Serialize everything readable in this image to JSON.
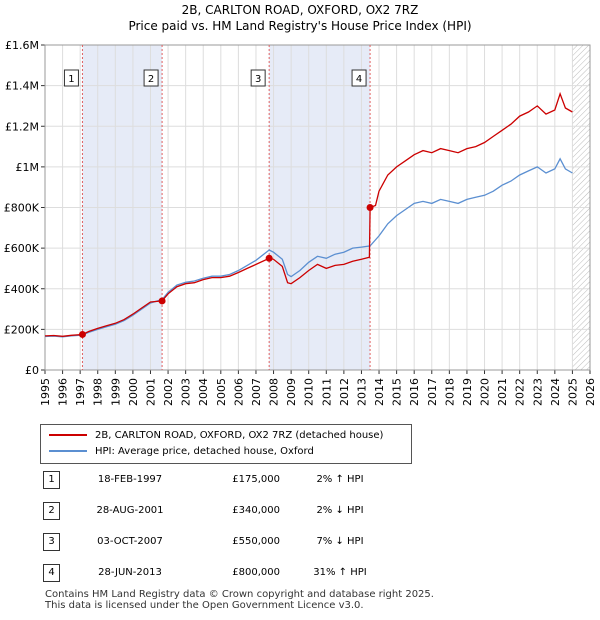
{
  "chart_data": {
    "type": "line",
    "title": "2B, CARLTON ROAD, OXFORD, OX2 7RZ",
    "subtitle": "Price paid vs. HM Land Registry's House Price Index (HPI)",
    "xlabel": "",
    "ylabel": "",
    "xlim": [
      1995,
      2026
    ],
    "ylim": [
      0,
      1600000
    ],
    "x_ticks": [
      "1995",
      "1996",
      "1997",
      "1998",
      "1999",
      "2000",
      "2001",
      "2002",
      "2003",
      "2004",
      "2005",
      "2006",
      "2007",
      "2008",
      "2009",
      "2010",
      "2011",
      "2012",
      "2013",
      "2014",
      "2015",
      "2016",
      "2017",
      "2018",
      "2019",
      "2020",
      "2021",
      "2022",
      "2023",
      "2024",
      "2025",
      "2026"
    ],
    "y_ticks": [
      {
        "value": 0,
        "label": "£0"
      },
      {
        "value": 200000,
        "label": "£200K"
      },
      {
        "value": 400000,
        "label": "£400K"
      },
      {
        "value": 600000,
        "label": "£600K"
      },
      {
        "value": 800000,
        "label": "£800K"
      },
      {
        "value": 1000000,
        "label": "£1M"
      },
      {
        "value": 1200000,
        "label": "£1.2M"
      },
      {
        "value": 1400000,
        "label": "£1.4M"
      },
      {
        "value": 1600000,
        "label": "£1.6M"
      }
    ],
    "grid": true,
    "shaded_spans": [
      [
        1997.13,
        2001.66
      ],
      [
        2007.75,
        2013.49
      ]
    ],
    "forecast_from": 2025.0,
    "series": [
      {
        "name": "2B, CARLTON ROAD, OXFORD, OX2 7RZ (detached house)",
        "color": "#cc0000",
        "points": [
          [
            1995.0,
            168000
          ],
          [
            1995.5,
            170000
          ],
          [
            1996.0,
            166000
          ],
          [
            1996.5,
            171000
          ],
          [
            1997.13,
            175000
          ],
          [
            1997.5,
            190000
          ],
          [
            1998.0,
            205000
          ],
          [
            1998.5,
            218000
          ],
          [
            1999.0,
            230000
          ],
          [
            1999.5,
            248000
          ],
          [
            2000.0,
            275000
          ],
          [
            2000.5,
            305000
          ],
          [
            2001.0,
            335000
          ],
          [
            2001.66,
            340000
          ],
          [
            2002.0,
            375000
          ],
          [
            2002.5,
            410000
          ],
          [
            2003.0,
            425000
          ],
          [
            2003.5,
            430000
          ],
          [
            2004.0,
            445000
          ],
          [
            2004.5,
            455000
          ],
          [
            2005.0,
            455000
          ],
          [
            2005.5,
            462000
          ],
          [
            2006.0,
            480000
          ],
          [
            2006.5,
            500000
          ],
          [
            2007.0,
            520000
          ],
          [
            2007.75,
            550000
          ],
          [
            2008.0,
            545000
          ],
          [
            2008.5,
            510000
          ],
          [
            2008.8,
            430000
          ],
          [
            2009.0,
            425000
          ],
          [
            2009.5,
            455000
          ],
          [
            2010.0,
            490000
          ],
          [
            2010.5,
            520000
          ],
          [
            2011.0,
            500000
          ],
          [
            2011.5,
            515000
          ],
          [
            2012.0,
            520000
          ],
          [
            2012.5,
            535000
          ],
          [
            2013.0,
            545000
          ],
          [
            2013.45,
            555000
          ],
          [
            2013.49,
            800000
          ],
          [
            2013.8,
            810000
          ],
          [
            2014.0,
            880000
          ],
          [
            2014.5,
            960000
          ],
          [
            2015.0,
            1000000
          ],
          [
            2015.5,
            1030000
          ],
          [
            2016.0,
            1060000
          ],
          [
            2016.5,
            1080000
          ],
          [
            2017.0,
            1070000
          ],
          [
            2017.5,
            1090000
          ],
          [
            2018.0,
            1080000
          ],
          [
            2018.5,
            1070000
          ],
          [
            2019.0,
            1090000
          ],
          [
            2019.5,
            1100000
          ],
          [
            2020.0,
            1120000
          ],
          [
            2020.5,
            1150000
          ],
          [
            2021.0,
            1180000
          ],
          [
            2021.5,
            1210000
          ],
          [
            2022.0,
            1250000
          ],
          [
            2022.5,
            1270000
          ],
          [
            2023.0,
            1300000
          ],
          [
            2023.5,
            1260000
          ],
          [
            2024.0,
            1280000
          ],
          [
            2024.3,
            1360000
          ],
          [
            2024.6,
            1290000
          ],
          [
            2025.0,
            1270000
          ]
        ]
      },
      {
        "name": "HPI: Average price, detached house, Oxford",
        "color": "#5b8fd1",
        "points": [
          [
            1995.0,
            165000
          ],
          [
            1995.5,
            167000
          ],
          [
            1996.0,
            163000
          ],
          [
            1996.5,
            168000
          ],
          [
            1997.13,
            172000
          ],
          [
            1997.5,
            186000
          ],
          [
            1998.0,
            200000
          ],
          [
            1998.5,
            213000
          ],
          [
            1999.0,
            225000
          ],
          [
            1999.5,
            243000
          ],
          [
            2000.0,
            270000
          ],
          [
            2000.5,
            300000
          ],
          [
            2001.0,
            330000
          ],
          [
            2001.66,
            347000
          ],
          [
            2002.0,
            382000
          ],
          [
            2002.5,
            418000
          ],
          [
            2003.0,
            432000
          ],
          [
            2003.5,
            438000
          ],
          [
            2004.0,
            452000
          ],
          [
            2004.5,
            462000
          ],
          [
            2005.0,
            462000
          ],
          [
            2005.5,
            470000
          ],
          [
            2006.0,
            490000
          ],
          [
            2006.5,
            515000
          ],
          [
            2007.0,
            540000
          ],
          [
            2007.75,
            591000
          ],
          [
            2008.0,
            580000
          ],
          [
            2008.5,
            545000
          ],
          [
            2008.8,
            470000
          ],
          [
            2009.0,
            460000
          ],
          [
            2009.5,
            490000
          ],
          [
            2010.0,
            530000
          ],
          [
            2010.5,
            560000
          ],
          [
            2011.0,
            550000
          ],
          [
            2011.5,
            570000
          ],
          [
            2012.0,
            580000
          ],
          [
            2012.5,
            600000
          ],
          [
            2013.0,
            605000
          ],
          [
            2013.49,
            611000
          ],
          [
            2014.0,
            660000
          ],
          [
            2014.5,
            720000
          ],
          [
            2015.0,
            760000
          ],
          [
            2015.5,
            790000
          ],
          [
            2016.0,
            820000
          ],
          [
            2016.5,
            830000
          ],
          [
            2017.0,
            820000
          ],
          [
            2017.5,
            840000
          ],
          [
            2018.0,
            830000
          ],
          [
            2018.5,
            820000
          ],
          [
            2019.0,
            840000
          ],
          [
            2019.5,
            850000
          ],
          [
            2020.0,
            860000
          ],
          [
            2020.5,
            880000
          ],
          [
            2021.0,
            910000
          ],
          [
            2021.5,
            930000
          ],
          [
            2022.0,
            960000
          ],
          [
            2022.5,
            980000
          ],
          [
            2023.0,
            1000000
          ],
          [
            2023.5,
            970000
          ],
          [
            2024.0,
            990000
          ],
          [
            2024.3,
            1040000
          ],
          [
            2024.6,
            990000
          ],
          [
            2025.0,
            970000
          ]
        ]
      }
    ],
    "markers": [
      {
        "label": "1",
        "x": 1997.13,
        "y": 175000
      },
      {
        "label": "2",
        "x": 2001.66,
        "y": 340000
      },
      {
        "label": "3",
        "x": 2007.75,
        "y": 550000
      },
      {
        "label": "4",
        "x": 2013.49,
        "y": 800000
      }
    ]
  },
  "legend": {
    "property_label": "2B, CARLTON ROAD, OXFORD, OX2 7RZ (detached house)",
    "hpi_label": "HPI: Average price, detached house, Oxford",
    "property_color": "#cc0000",
    "hpi_color": "#5b8fd1"
  },
  "sales": [
    {
      "num": "1",
      "date": "18-FEB-1997",
      "price": "£175,000",
      "hpi": "2% ↑ HPI"
    },
    {
      "num": "2",
      "date": "28-AUG-2001",
      "price": "£340,000",
      "hpi": "2% ↓ HPI"
    },
    {
      "num": "3",
      "date": "03-OCT-2007",
      "price": "£550,000",
      "hpi": "7% ↓ HPI"
    },
    {
      "num": "4",
      "date": "28-JUN-2013",
      "price": "£800,000",
      "hpi": "31% ↑ HPI"
    }
  ],
  "footer": {
    "line1": "Contains HM Land Registry data © Crown copyright and database right 2025.",
    "line2": "This data is licensed under the Open Government Licence v3.0."
  }
}
